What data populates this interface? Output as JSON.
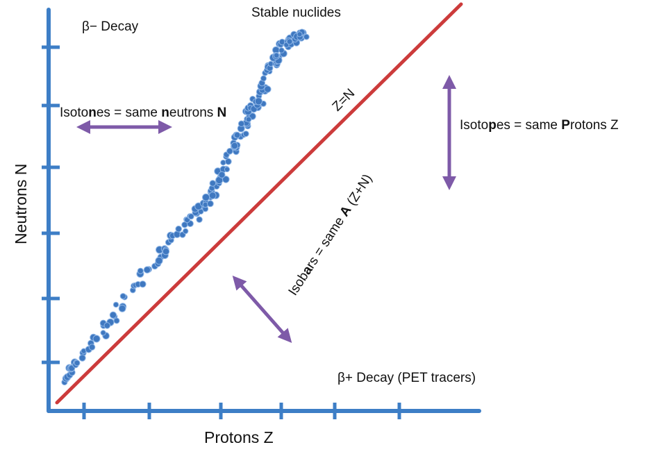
{
  "axes": {
    "x_label": "Protons Z",
    "y_label": "Neutrons N"
  },
  "labels": {
    "beta_minus": "β− Decay",
    "beta_plus": "β+ Decay (PET tracers)",
    "stable": "Stable nuclides",
    "z_equals_n": "Z=N",
    "isotones": {
      "a": "Isoto",
      "b": "n",
      "c": "es = same ",
      "d": "n",
      "e": "eutrons ",
      "f": "N"
    },
    "isotopes": {
      "a": "Isoto",
      "b": "p",
      "c": "es = same ",
      "d": "P",
      "e": "rotons Z"
    },
    "isobars": {
      "a": "Isob",
      "b": "a",
      "c": "rs = same ",
      "d": "A",
      "e": " (Z+N)"
    }
  },
  "colors": {
    "axis": "#3d7ec6",
    "diagonal": "#cc3b3b",
    "arrows": "#7e5aa8",
    "nuclides": "#3f78c0"
  }
}
